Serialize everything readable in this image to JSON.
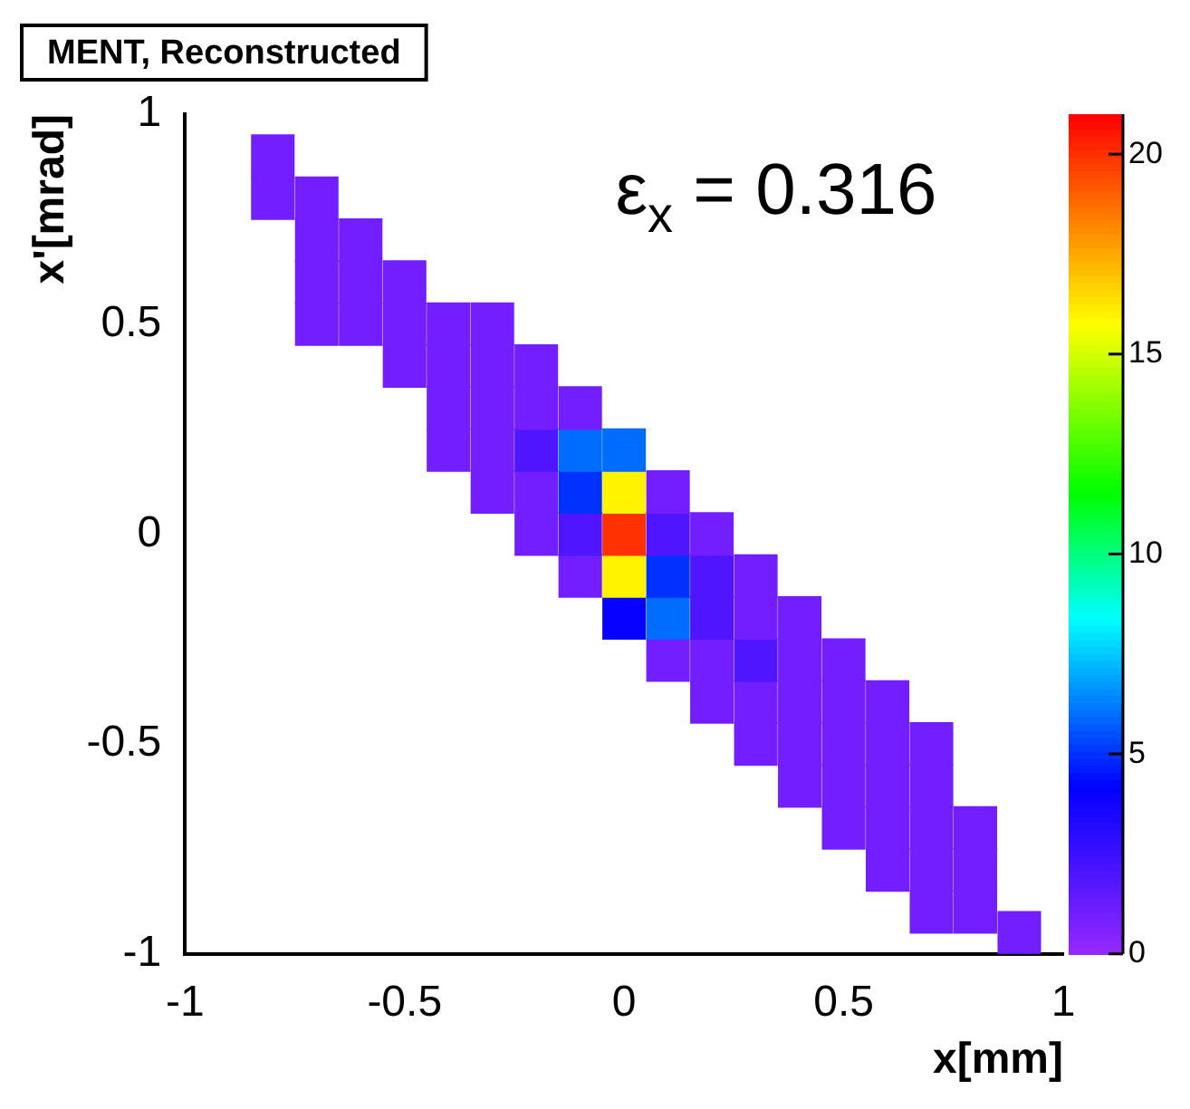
{
  "chart_data": {
    "type": "scatter",
    "title": "MENT, Reconstructed",
    "xlabel": "x[mm]",
    "ylabel": "x'[mrad]",
    "annotations": [
      "ε$_{x}$ = 0.316"
    ],
    "marker": "square",
    "legend": false,
    "grid": false,
    "xlim": [
      -1,
      1
    ],
    "xticks": [
      -1,
      -0.5,
      0,
      0.5,
      1
    ],
    "ylim": [
      -1,
      1
    ],
    "yticks": [
      -1,
      -0.5,
      0,
      0.5,
      1
    ],
    "clim": [
      0,
      21
    ],
    "cticks": [
      0,
      5,
      10,
      15,
      20
    ],
    "x": [
      -0.8,
      -0.8,
      -0.7,
      -0.7,
      -0.7,
      -0.7,
      -0.6,
      -0.6,
      -0.6,
      -0.5,
      -0.5,
      -0.5,
      -0.4,
      -0.4,
      -0.4,
      -0.4,
      -0.3,
      -0.3,
      -0.3,
      -0.3,
      -0.3,
      -0.2,
      -0.2,
      -0.2,
      -0.2,
      -0.2,
      -0.1,
      -0.1,
      -0.1,
      -0.1,
      -0.1,
      0,
      0,
      0,
      0,
      0,
      0.1,
      0.1,
      0.1,
      0.1,
      0.1,
      0.2,
      0.2,
      0.2,
      0.2,
      0.2,
      0.3,
      0.3,
      0.3,
      0.3,
      0.3,
      0.4,
      0.4,
      0.4,
      0.4,
      0.4,
      0.5,
      0.5,
      0.5,
      0.5,
      0.5,
      0.6,
      0.6,
      0.6,
      0.6,
      0.6,
      0.7,
      0.7,
      0.7,
      0.7,
      0.7,
      0.8,
      0.8,
      0.8,
      0.9
    ],
    "values": [
      0.8,
      0.9,
      0.5,
      0.6,
      0.7,
      0.8,
      0.5,
      0.6,
      0.7,
      0.4,
      0.5,
      0.6,
      0.2,
      0.3,
      0.4,
      0.5,
      0.1,
      0.2,
      0.3,
      0.4,
      0.5,
      0,
      0.1,
      0.2,
      0.3,
      0.4,
      -0.1,
      0,
      0.1,
      0.2,
      0.3,
      -0.2,
      -0.1,
      0,
      0.1,
      0.2,
      -0.3,
      -0.2,
      -0.1,
      0,
      0.1,
      -0.4,
      -0.3,
      -0.2,
      -0.1,
      0,
      -0.5,
      -0.4,
      -0.3,
      -0.2,
      -0.1,
      -0.6,
      -0.5,
      -0.4,
      -0.3,
      -0.2,
      -0.7,
      -0.6,
      -0.5,
      -0.4,
      -0.3,
      -0.8,
      -0.7,
      -0.6,
      -0.5,
      -0.4,
      -0.9,
      -0.8,
      -0.7,
      -0.6,
      -0.5,
      -0.9,
      -0.8,
      -0.7,
      -0.95
    ],
    "cvalues": [
      1,
      1,
      1,
      1,
      1,
      1,
      1,
      1,
      1,
      1,
      1,
      1,
      1,
      1,
      1,
      1,
      1,
      1,
      1,
      1,
      1,
      1,
      1,
      2,
      1,
      1,
      1,
      2,
      5,
      6,
      1,
      4,
      16,
      20,
      16,
      6,
      1,
      6,
      5,
      2,
      1,
      1,
      1,
      2,
      2,
      1,
      1,
      1,
      2,
      1,
      1,
      1,
      1,
      1,
      1,
      1,
      1,
      1,
      1,
      1,
      1,
      1,
      1,
      1,
      1,
      1,
      1,
      1,
      1,
      1,
      1,
      1,
      1,
      1,
      1
    ]
  }
}
